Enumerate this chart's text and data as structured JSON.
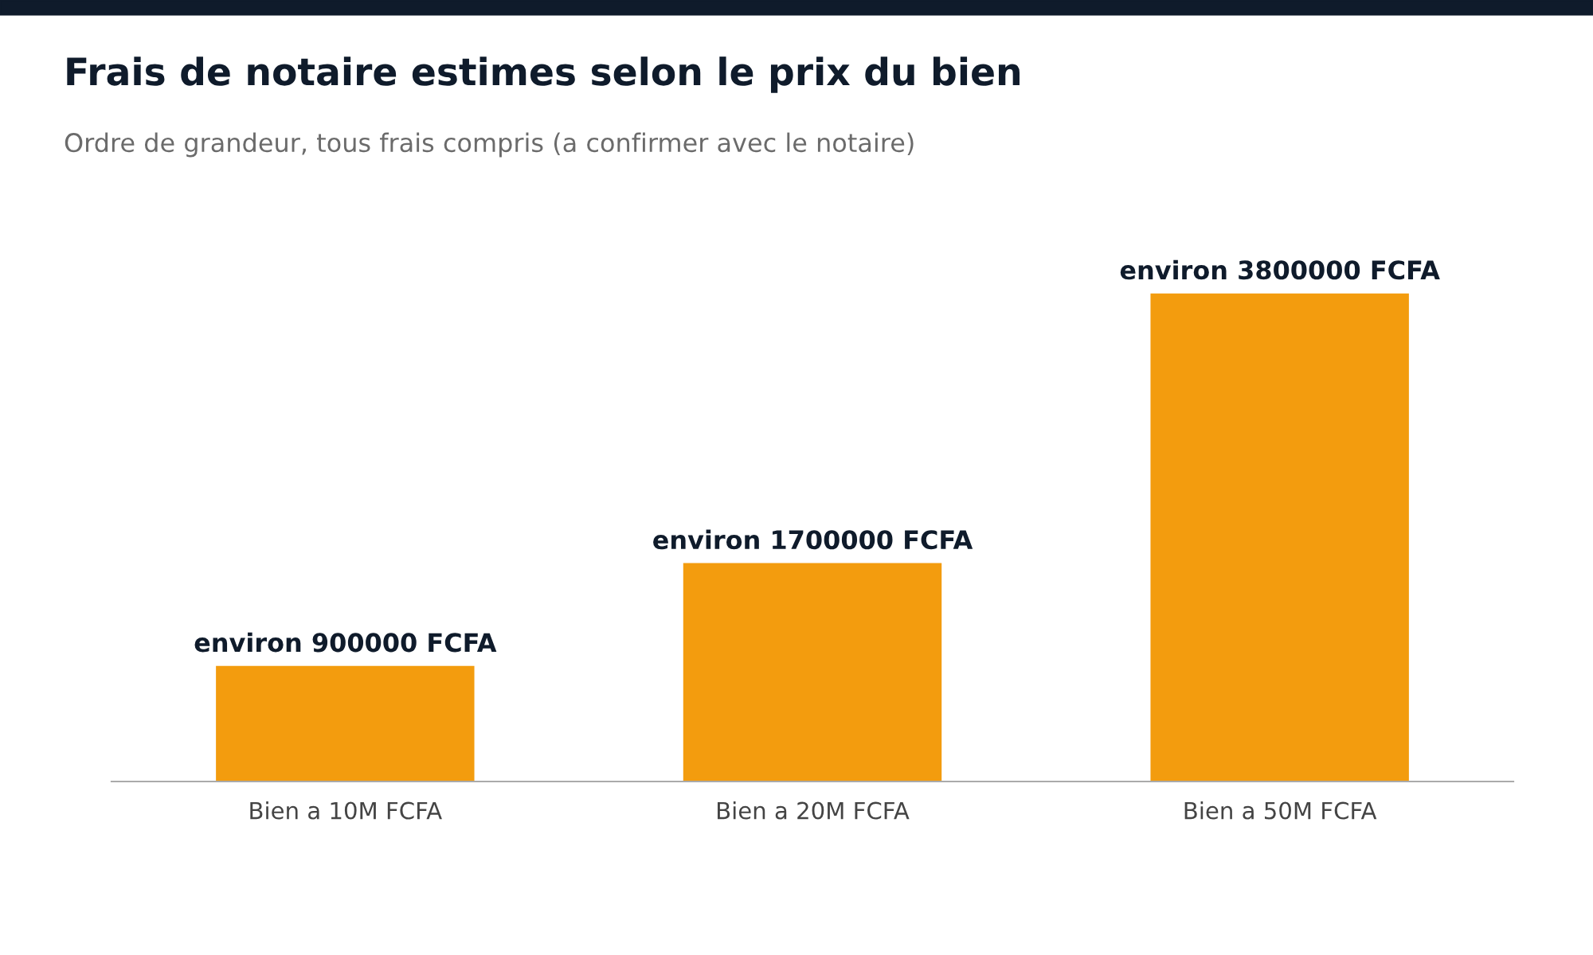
{
  "chart_data": {
    "type": "bar",
    "title": "Frais de notaire estimes selon le prix du bien",
    "subtitle": "Ordre de grandeur, tous frais compris (a confirmer avec le notaire)",
    "categories": [
      "Bien a 10M FCFA",
      "Bien a 20M FCFA",
      "Bien a 50M FCFA"
    ],
    "values": [
      900000,
      1700000,
      3800000
    ],
    "value_labels": [
      "environ 900000 FCFA",
      "environ 1700000 FCFA",
      "environ 3800000 FCFA"
    ],
    "color": "#f39c0e",
    "grid": false,
    "legend": false
  }
}
